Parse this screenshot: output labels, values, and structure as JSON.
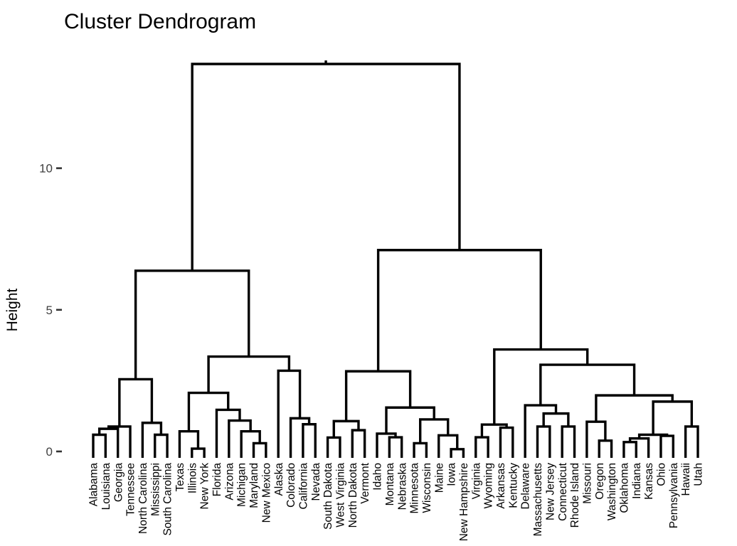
{
  "chart_data": {
    "type": "dendrogram",
    "title": "Cluster Dendrogram",
    "ylabel": "Height",
    "yticks": [
      0,
      5,
      10
    ],
    "ylim": [
      0,
      14
    ],
    "line_color": "#000000",
    "background": "#ffffff",
    "leaf_order": [
      "Alabama",
      "Louisiana",
      "Georgia",
      "Tennessee",
      "North Carolina",
      "Mississippi",
      "South Carolina",
      "Texas",
      "Illinois",
      "New York",
      "Florida",
      "Arizona",
      "Michigan",
      "Maryland",
      "New Mexico",
      "Alaska",
      "Colorado",
      "California",
      "Nevada",
      "South Dakota",
      "West Virginia",
      "North Dakota",
      "Vermont",
      "Idaho",
      "Montana",
      "Nebraska",
      "Minnesota",
      "Wisconsin",
      "Maine",
      "Iowa",
      "New Hampshire",
      "Virginia",
      "Wyoming",
      "Arkansas",
      "Kentucky",
      "Delaware",
      "Massachusetts",
      "New Jersey",
      "Connecticut",
      "Rhode Island",
      "Missouri",
      "Oregon",
      "Washington",
      "Oklahoma",
      "Indiana",
      "Kansas",
      "Ohio",
      "Pennsylvania",
      "Hawaii",
      "Utah"
    ],
    "tree": {
      "h": 13.68,
      "c": [
        {
          "h": 6.38,
          "c": [
            {
              "h": 2.55,
              "c": [
                {
                  "h": 0.88,
                  "c": [
                    {
                      "h": 0.8,
                      "c": [
                        {
                          "h": 0.59,
                          "c": [
                            "Alabama",
                            "Louisiana"
                          ]
                        },
                        "Georgia"
                      ]
                    },
                    "Tennessee"
                  ]
                },
                {
                  "h": 1.01,
                  "c": [
                    "North Carolina",
                    {
                      "h": 0.59,
                      "c": [
                        "Mississippi",
                        "South Carolina"
                      ]
                    }
                  ]
                }
              ]
            },
            {
              "h": 3.35,
              "c": [
                {
                  "h": 2.07,
                  "c": [
                    {
                      "h": 0.71,
                      "c": [
                        "Texas",
                        {
                          "h": 0.1,
                          "c": [
                            "Illinois",
                            "New York"
                          ]
                        }
                      ]
                    },
                    {
                      "h": 1.47,
                      "c": [
                        "Florida",
                        {
                          "h": 1.09,
                          "c": [
                            "Arizona",
                            {
                              "h": 0.71,
                              "c": [
                                "Michigan",
                                {
                                  "h": 0.29,
                                  "c": [
                                    "Maryland",
                                    "New Mexico"
                                  ]
                                }
                              ]
                            }
                          ]
                        }
                      ]
                    }
                  ]
                },
                {
                  "h": 2.85,
                  "c": [
                    "Alaska",
                    {
                      "h": 1.17,
                      "c": [
                        "Colorado",
                        {
                          "h": 0.96,
                          "c": [
                            "California",
                            "Nevada"
                          ]
                        }
                      ]
                    }
                  ]
                }
              ]
            }
          ]
        },
        {
          "h": 7.11,
          "c": [
            {
              "h": 2.83,
              "c": [
                {
                  "h": 1.07,
                  "c": [
                    {
                      "h": 0.49,
                      "c": [
                        "South Dakota",
                        "West Virginia"
                      ]
                    },
                    {
                      "h": 0.75,
                      "c": [
                        "North Dakota",
                        "Vermont"
                      ]
                    }
                  ]
                },
                {
                  "h": 1.55,
                  "c": [
                    {
                      "h": 0.63,
                      "c": [
                        "Idaho",
                        {
                          "h": 0.5,
                          "c": [
                            "Montana",
                            "Nebraska"
                          ]
                        }
                      ]
                    },
                    {
                      "h": 1.13,
                      "c": [
                        {
                          "h": 0.29,
                          "c": [
                            "Minnesota",
                            "Wisconsin"
                          ]
                        },
                        {
                          "h": 0.57,
                          "c": [
                            "Maine",
                            {
                              "h": 0.08,
                              "c": [
                                "Iowa",
                                "New Hampshire"
                              ]
                            }
                          ]
                        }
                      ]
                    }
                  ]
                }
              ]
            },
            {
              "h": 3.6,
              "c": [
                {
                  "h": 0.95,
                  "c": [
                    {
                      "h": 0.5,
                      "c": [
                        "Virginia",
                        "Wyoming"
                      ]
                    },
                    {
                      "h": 0.84,
                      "c": [
                        "Arkansas",
                        "Kentucky"
                      ]
                    }
                  ]
                },
                {
                  "h": 3.06,
                  "c": [
                    {
                      "h": 1.63,
                      "c": [
                        "Delaware",
                        {
                          "h": 1.34,
                          "c": [
                            {
                              "h": 0.88,
                              "c": [
                                "Massachusetts",
                                "New Jersey"
                              ]
                            },
                            {
                              "h": 0.88,
                              "c": [
                                "Connecticut",
                                "Rhode Island"
                              ]
                            }
                          ]
                        }
                      ]
                    },
                    {
                      "h": 1.98,
                      "c": [
                        {
                          "h": 1.05,
                          "c": [
                            "Missouri",
                            {
                              "h": 0.38,
                              "c": [
                                "Oregon",
                                "Washington"
                              ]
                            }
                          ]
                        },
                        {
                          "h": 1.76,
                          "c": [
                            {
                              "h": 0.59,
                              "c": [
                                {
                                  "h": 0.46,
                                  "c": [
                                    {
                                      "h": 0.33,
                                      "c": [
                                        "Oklahoma",
                                        "Indiana"
                                      ]
                                    },
                                    "Kansas"
                                  ]
                                },
                                {
                                  "h": 0.55,
                                  "c": [
                                    "Ohio",
                                    "Pennsylvania"
                                  ]
                                }
                              ]
                            },
                            {
                              "h": 0.88,
                              "c": [
                                "Hawaii",
                                "Utah"
                              ]
                            }
                          ]
                        }
                      ]
                    }
                  ]
                }
              ]
            }
          ]
        }
      ]
    }
  }
}
